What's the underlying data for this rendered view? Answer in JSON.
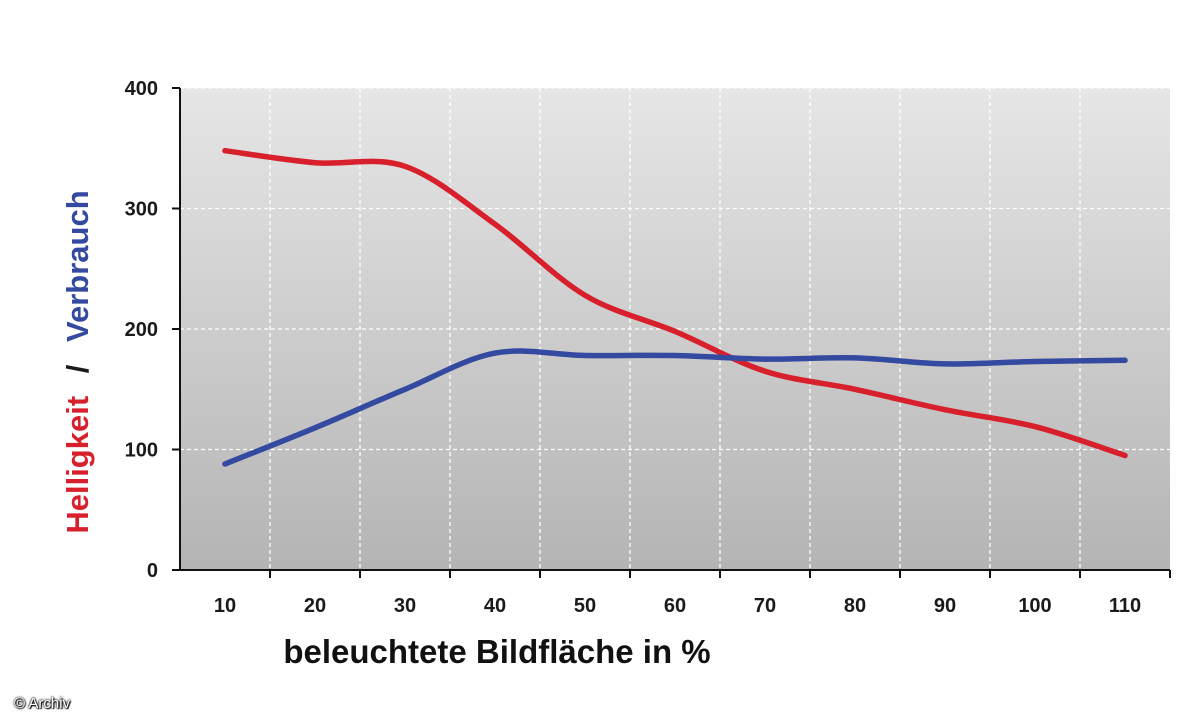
{
  "chart_data": {
    "type": "line",
    "x": [
      10,
      20,
      30,
      40,
      50,
      60,
      70,
      80,
      90,
      100,
      110
    ],
    "series": [
      {
        "color": "#d8202c",
        "values": [
          348,
          338,
          335,
          287,
          228,
          198,
          165,
          150,
          133,
          119,
          95
        ]
      },
      {
        "color": "#3449a0",
        "values": [
          88,
          118,
          150,
          180,
          178,
          178,
          175,
          176,
          171,
          173,
          174
        ]
      }
    ],
    "xlabel": "beleuchtete Bildfläche in %",
    "ylabel_parts": [
      {
        "text": "Helligkeit",
        "color": "#d8202c"
      },
      {
        "text": "/",
        "color": "#1a1a1a"
      },
      {
        "text": "Verbrauch",
        "color": "#3449a0"
      }
    ],
    "ylim": [
      0,
      400
    ],
    "yticks": [
      0,
      100,
      200,
      300,
      400
    ],
    "xtick_labels": [
      "10",
      "20",
      "30",
      "40",
      "50",
      "60",
      "70",
      "80",
      "90",
      "100",
      "110"
    ],
    "grid": true,
    "colors": {
      "plot_bg_top": "#e6e6e6",
      "plot_bg_bottom": "#b4b4b4",
      "grid": "#ffffff"
    }
  },
  "copyright": "© Archiv"
}
